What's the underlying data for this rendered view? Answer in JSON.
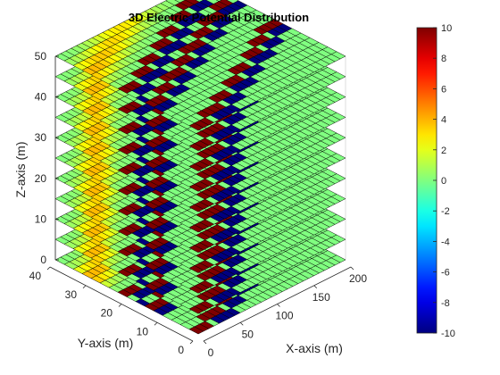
{
  "chart_data": {
    "type": "3d-slice-heatmap",
    "title": "3D Electric Potential Distribution",
    "xlabel": "X-axis (m)",
    "ylabel": "Y-axis (m)",
    "zlabel": "Z-axis (m)",
    "xlim": [
      0,
      200
    ],
    "ylim": [
      0,
      40
    ],
    "zlim": [
      0,
      50
    ],
    "xticks": [
      0,
      50,
      100,
      150,
      200
    ],
    "yticks": [
      0,
      10,
      20,
      30,
      40
    ],
    "zticks": [
      0,
      10,
      20,
      30,
      40,
      50
    ],
    "slice_z": [
      0,
      5,
      10,
      15,
      20,
      25,
      30,
      35,
      40,
      45,
      50
    ],
    "potential_field": {
      "background": 0,
      "bands": [
        {
          "y_at_x0": 20,
          "y_at_x200": 40,
          "value": 10
        },
        {
          "y_at_x0": 17,
          "y_at_x200": 37,
          "value": -10
        },
        {
          "y_at_x0": 13,
          "y_at_x200": 33,
          "value": 10
        },
        {
          "y_at_x0": 10,
          "y_at_x200": 30,
          "value": -10
        },
        {
          "y_at_x0": 0,
          "y_at_x200": 20,
          "value": 10
        },
        {
          "y_at_x0": -3,
          "y_at_x200": 17,
          "value": -10
        }
      ],
      "warm_strip": {
        "y_at_x0": 30,
        "y_at_x200": 50,
        "peak": 4
      }
    },
    "colorbar": {
      "min": -10,
      "max": 10,
      "ticks": [
        -10,
        -8,
        -6,
        -4,
        -2,
        0,
        2,
        4,
        6,
        8,
        10
      ],
      "colormap": "jet"
    },
    "grid": true
  }
}
